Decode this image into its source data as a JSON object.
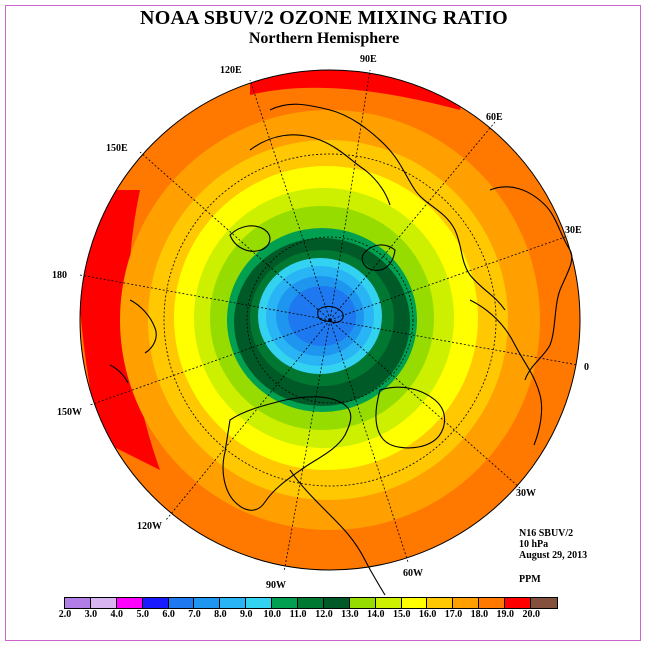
{
  "title": "NOAA SBUV/2 OZONE MIXING RATIO",
  "subtitle": "Northern Hemisphere",
  "info": {
    "instrument": "N16 SBUV/2",
    "pressure": "10 hPa",
    "date": "August 29, 2013",
    "units": "PPM"
  },
  "longitude_labels": [
    "90E",
    "60E",
    "30E",
    "0",
    "30W",
    "60W",
    "90W",
    "120W",
    "150W",
    "180",
    "150E",
    "120E"
  ],
  "colorbar": {
    "ticks": [
      "2.0",
      "3.0",
      "4.0",
      "5.0",
      "6.0",
      "7.0",
      "8.0",
      "9.0",
      "10.0",
      "11.0",
      "12.0",
      "13.0",
      "14.0",
      "15.0",
      "16.0",
      "17.0",
      "18.0",
      "19.0",
      "20.0"
    ],
    "colors": [
      "#b07ee6",
      "#d8b4f0",
      "#ff00ff",
      "#1a1aff",
      "#1e78f0",
      "#1e96f0",
      "#28b4f5",
      "#32d2f0",
      "#00a050",
      "#007832",
      "#005a28",
      "#96dc00",
      "#ccf000",
      "#ffff00",
      "#ffc800",
      "#ffa000",
      "#ff7800",
      "#ff0000",
      "#82503c"
    ]
  }
}
